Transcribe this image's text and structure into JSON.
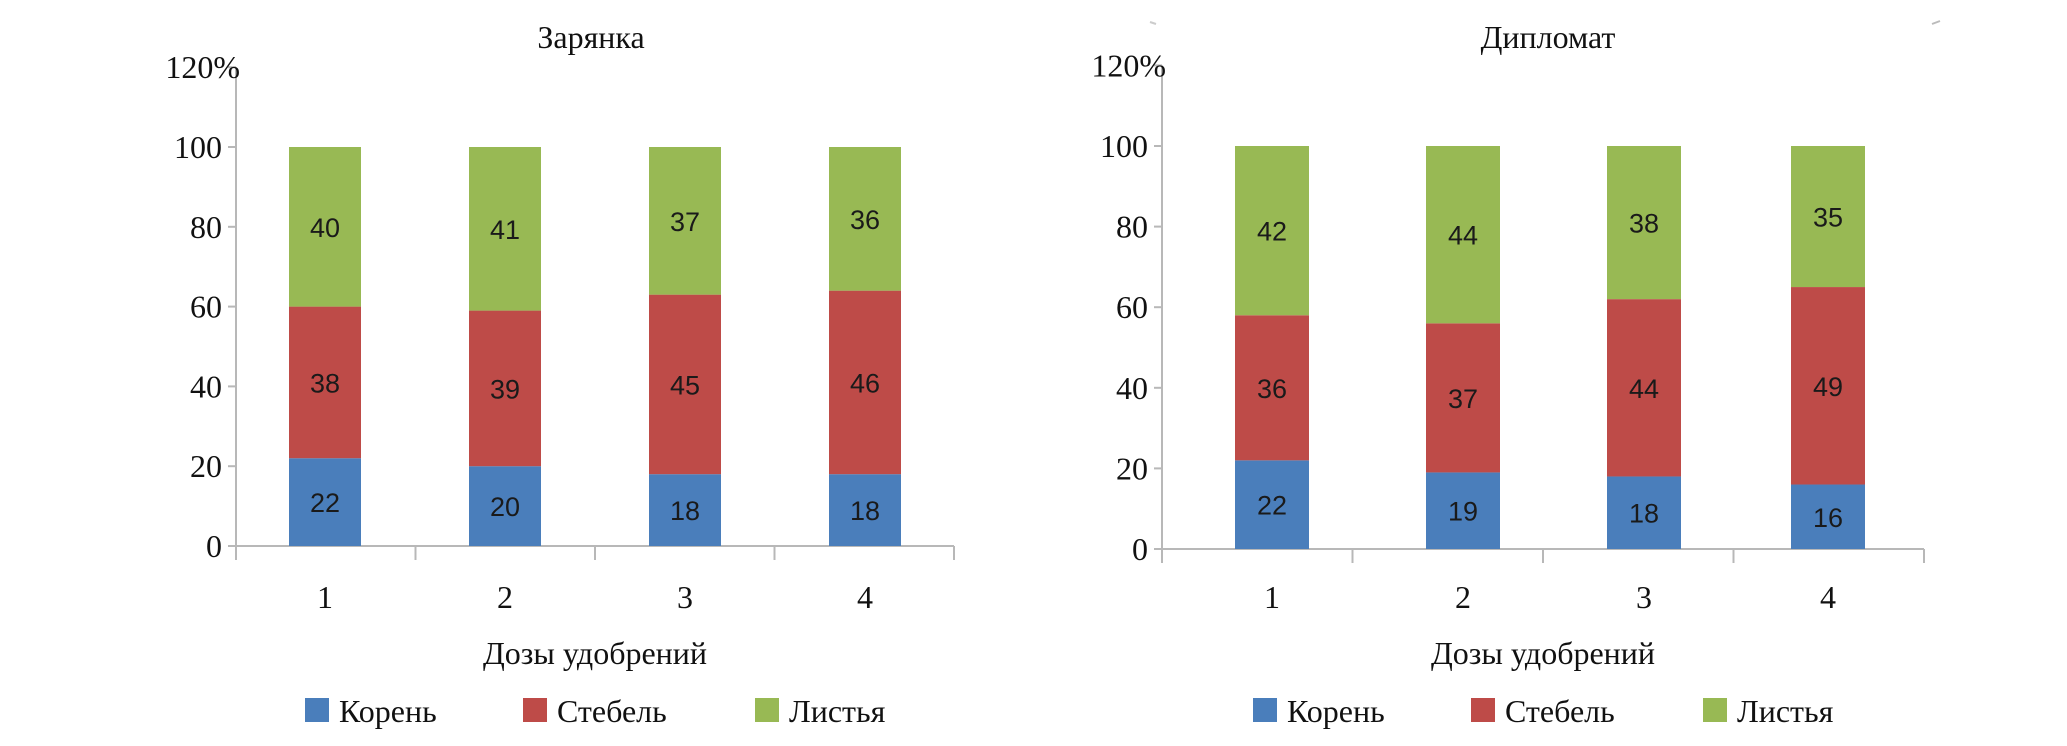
{
  "colors": {
    "Корень": "#4a7ebb",
    "Стебель": "#be4b48",
    "Листья": "#98b954"
  },
  "chart_data": [
    {
      "type": "bar",
      "stacked": true,
      "title": "Зарянка",
      "xlabel": "Дозы удобрений",
      "ylabel": "",
      "ylim": [
        0,
        120
      ],
      "yticks": [
        "0",
        "20",
        "40",
        "60",
        "80",
        "100",
        "120%"
      ],
      "categories": [
        "1",
        "2",
        "3",
        "4"
      ],
      "legend_position": "bottom",
      "grid": false,
      "series": [
        {
          "name": "Корень",
          "values": [
            22,
            20,
            18,
            18
          ]
        },
        {
          "name": "Стебель",
          "values": [
            38,
            39,
            45,
            46
          ]
        },
        {
          "name": "Листья",
          "values": [
            40,
            41,
            37,
            36
          ]
        }
      ]
    },
    {
      "type": "bar",
      "stacked": true,
      "title": "Дипломат",
      "xlabel": "Дозы удобрений",
      "ylabel": "",
      "ylim": [
        0,
        120
      ],
      "yticks": [
        "0",
        "20",
        "40",
        "60",
        "80",
        "100",
        "120%"
      ],
      "categories": [
        "1",
        "2",
        "3",
        "4"
      ],
      "legend_position": "bottom",
      "grid": false,
      "series": [
        {
          "name": "Корень",
          "values": [
            22,
            19,
            18,
            16
          ]
        },
        {
          "name": "Стебель",
          "values": [
            36,
            37,
            44,
            49
          ]
        },
        {
          "name": "Листья",
          "values": [
            42,
            44,
            38,
            35
          ]
        }
      ]
    }
  ]
}
